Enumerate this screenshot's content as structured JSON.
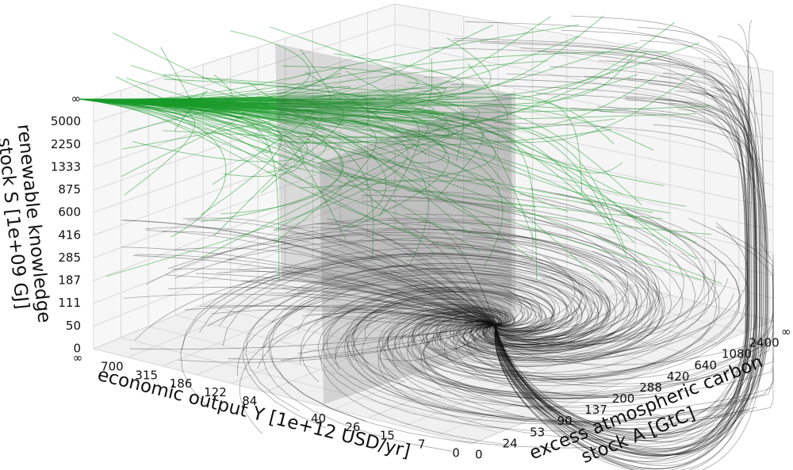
{
  "chart_data": {
    "type": "3d-trajectories",
    "x_label": "economic output Y [1e+12 USD/yr]",
    "y_label": [
      "excess atmospheric carbon",
      "stock A [GtC]"
    ],
    "z_label": [
      "renewable knowledge",
      "stock S [1e+09 GJ]"
    ],
    "xticks": [
      0,
      7,
      15,
      26,
      40,
      null,
      84,
      122,
      186,
      315,
      700,
      {
        "value": null,
        "label": "∞"
      }
    ],
    "yticks": [
      0,
      24,
      53,
      90,
      137,
      200,
      288,
      420,
      640,
      1080,
      2400,
      {
        "value": null,
        "label": "∞"
      }
    ],
    "zticks": [
      0,
      50,
      111,
      187,
      285,
      416,
      600,
      875,
      1333,
      2250,
      5000,
      {
        "value": null,
        "label": "∞"
      }
    ],
    "colors": {
      "desirable": "#1a9a2a",
      "other": "#000000"
    },
    "grid": true
  }
}
